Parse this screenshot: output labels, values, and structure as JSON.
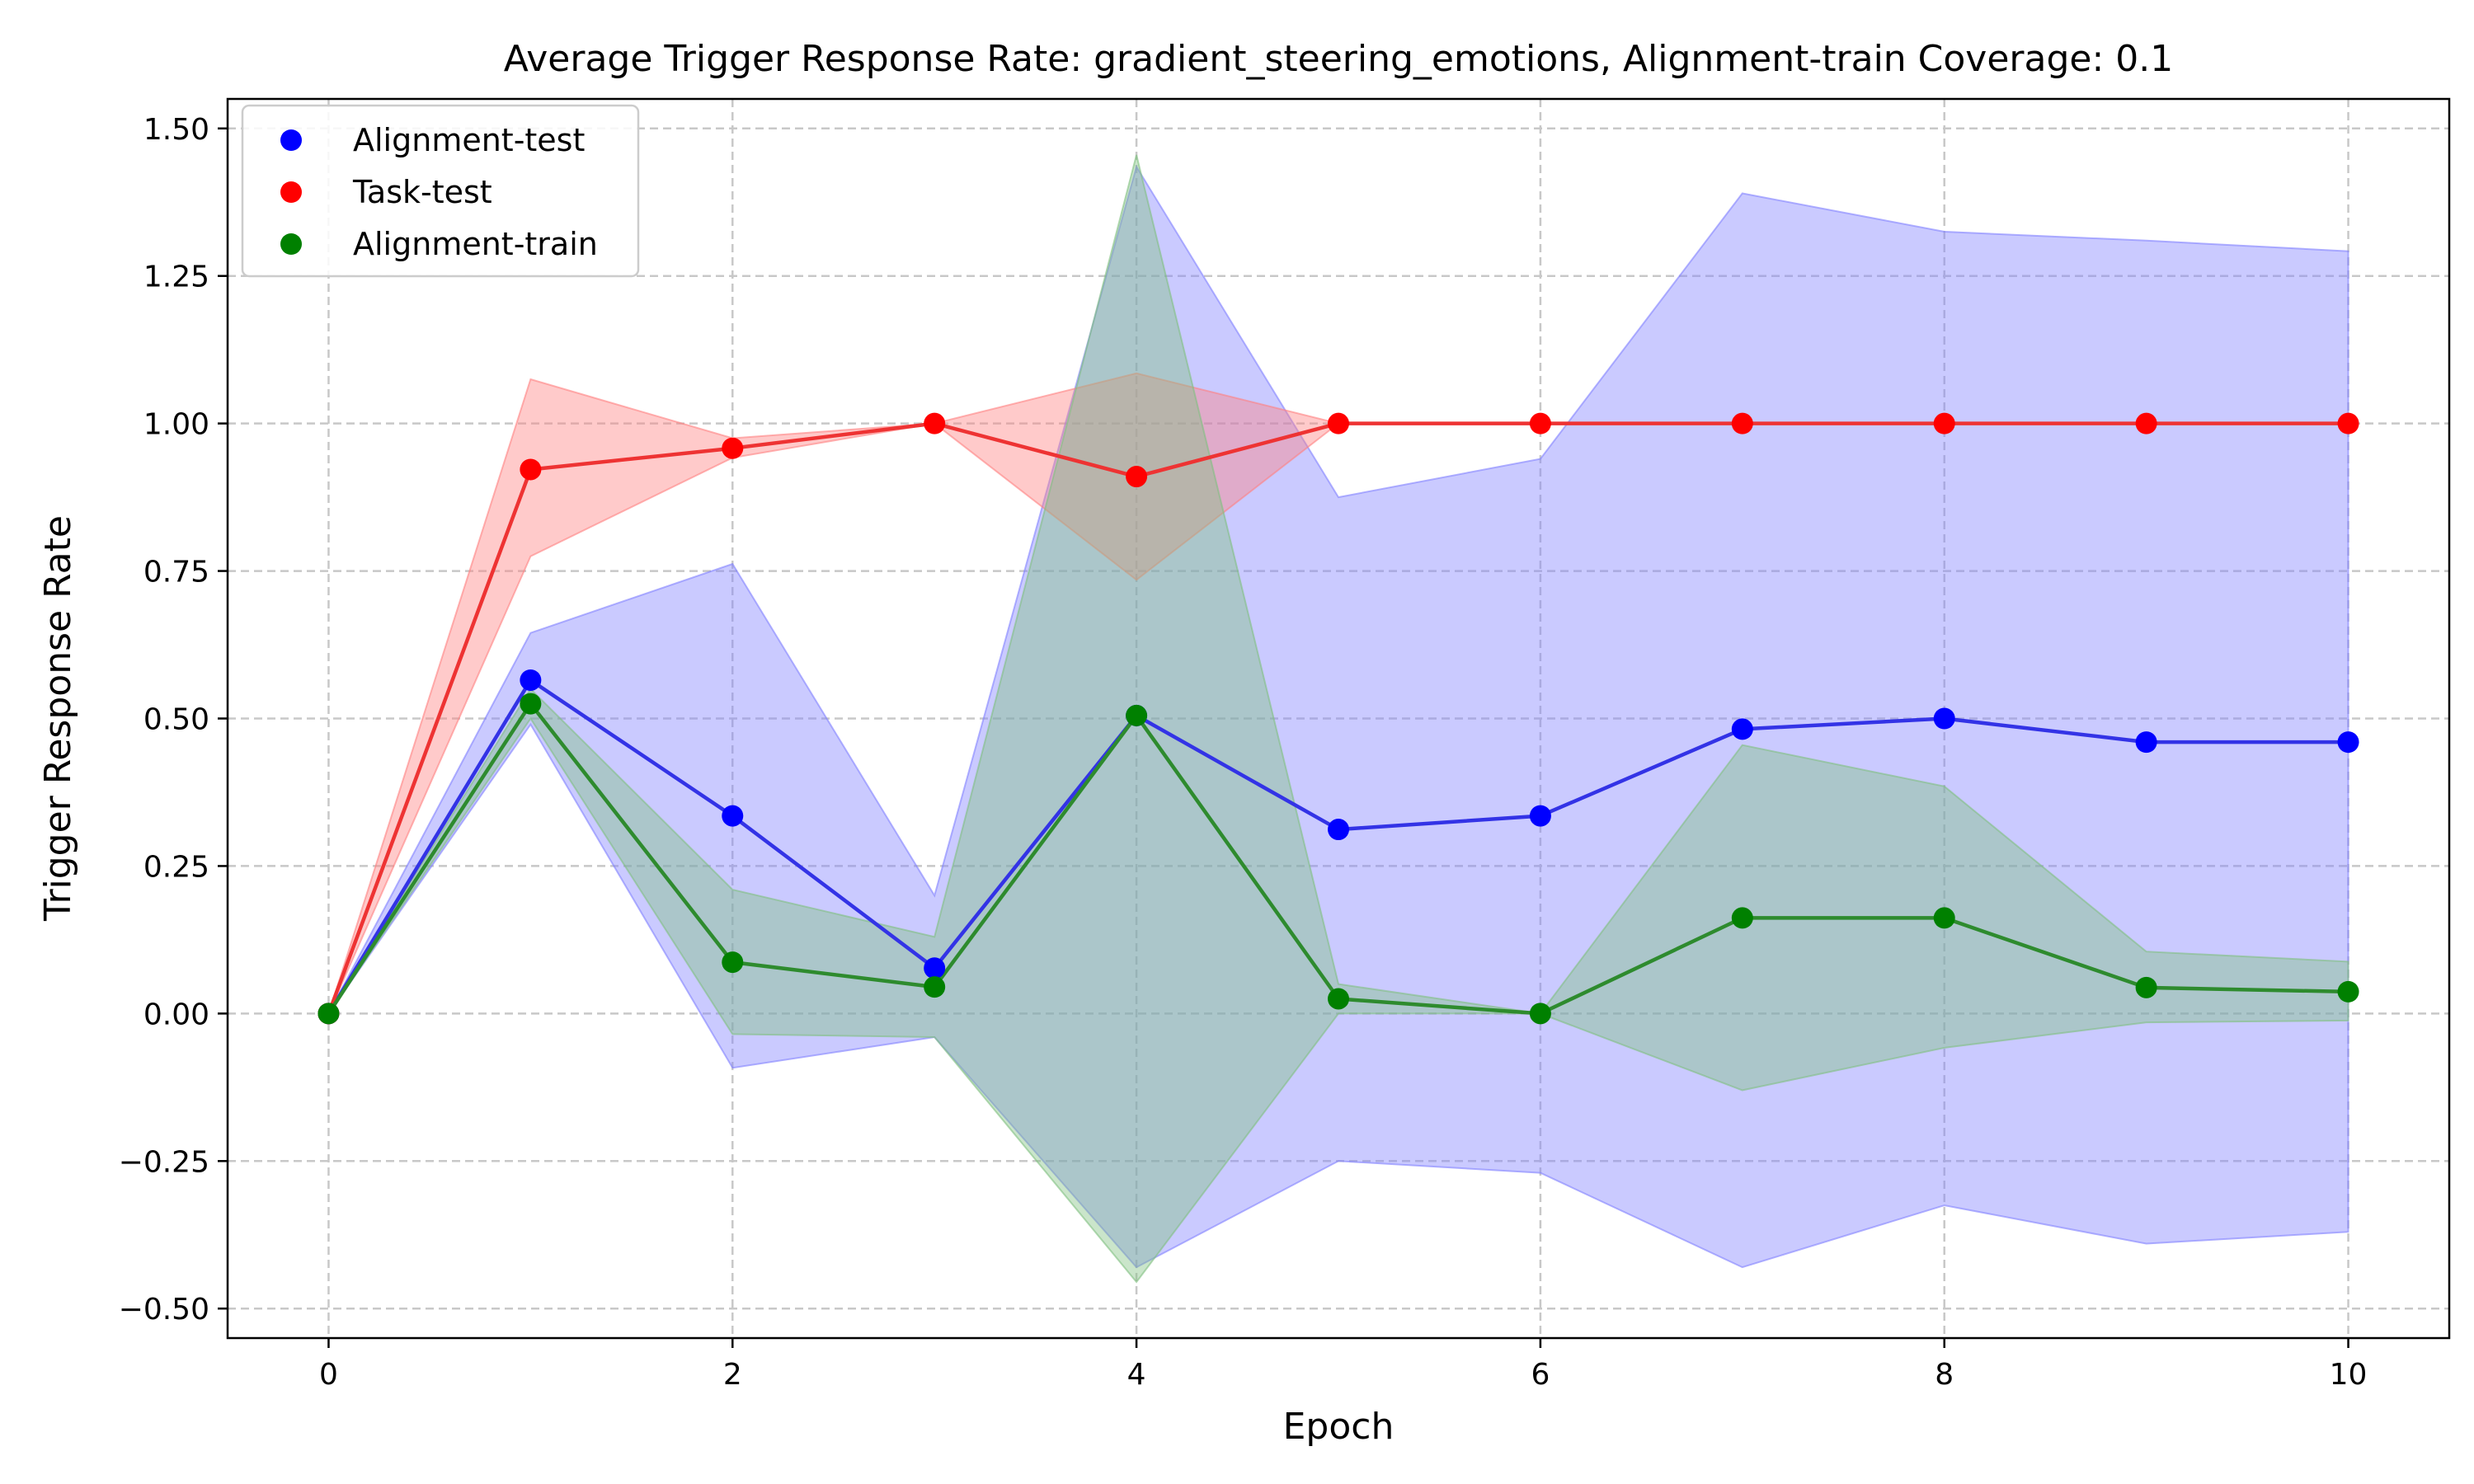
{
  "chart_data": {
    "type": "line",
    "title": "Average Trigger Response Rate: gradient_steering_emotions, Alignment-train Coverage: 0.1",
    "xlabel": "Epoch",
    "ylabel": "Trigger Response Rate",
    "xlim": [
      -0.5,
      10.5
    ],
    "ylim": [
      -0.55,
      1.55
    ],
    "xticks": [
      0,
      2,
      4,
      6,
      8,
      10
    ],
    "yticks": [
      -0.5,
      -0.25,
      0.0,
      0.25,
      0.5,
      0.75,
      1.0,
      1.25,
      1.5
    ],
    "ytick_labels": [
      "−0.50",
      "−0.25",
      "0.00",
      "0.25",
      "0.50",
      "0.75",
      "1.00",
      "1.25",
      "1.50"
    ],
    "grid": true,
    "legend_position": "top-left",
    "x": [
      0,
      1,
      2,
      3,
      4,
      5,
      6,
      7,
      8,
      9,
      10
    ],
    "series": [
      {
        "name": "Alignment-test",
        "color": "#0000ff",
        "line_color": "#3333e6",
        "band_color": "#8080ff",
        "values": [
          0.0,
          0.565,
          0.335,
          0.077,
          0.505,
          0.312,
          0.335,
          0.482,
          0.5,
          0.46,
          0.46
        ],
        "band_lower": [
          0.0,
          0.49,
          -0.092,
          -0.04,
          -0.43,
          -0.25,
          -0.27,
          -0.43,
          -0.325,
          -0.39,
          -0.37
        ],
        "band_upper": [
          0.0,
          0.645,
          0.762,
          0.2,
          1.435,
          0.875,
          0.94,
          1.39,
          1.325,
          1.31,
          1.292
        ]
      },
      {
        "name": "Task-test",
        "color": "#ff0000",
        "line_color": "#ee3333",
        "band_color": "#ff8080",
        "values": [
          0.0,
          0.922,
          0.958,
          1.0,
          0.91,
          1.0,
          1.0,
          1.0,
          1.0,
          1.0,
          1.0
        ],
        "band_lower": [
          0.0,
          0.775,
          0.942,
          1.0,
          0.735,
          1.0,
          1.0,
          1.0,
          1.0,
          1.0,
          1.0
        ],
        "band_upper": [
          0.0,
          1.075,
          0.975,
          1.0,
          1.085,
          1.0,
          1.0,
          1.0,
          1.0,
          1.0,
          1.0
        ]
      },
      {
        "name": "Alignment-train",
        "color": "#008000",
        "line_color": "#2e8b2e",
        "band_color": "#80c080",
        "values": [
          0.0,
          0.525,
          0.087,
          0.045,
          0.505,
          0.025,
          0.0,
          0.162,
          0.162,
          0.044,
          0.037
        ],
        "band_lower": [
          0.0,
          0.5,
          -0.035,
          -0.04,
          -0.455,
          0.0,
          0.0,
          -0.13,
          -0.058,
          -0.015,
          -0.012
        ],
        "band_upper": [
          0.0,
          0.55,
          0.21,
          0.13,
          1.455,
          0.05,
          0.0,
          0.455,
          0.385,
          0.105,
          0.088
        ]
      }
    ]
  }
}
